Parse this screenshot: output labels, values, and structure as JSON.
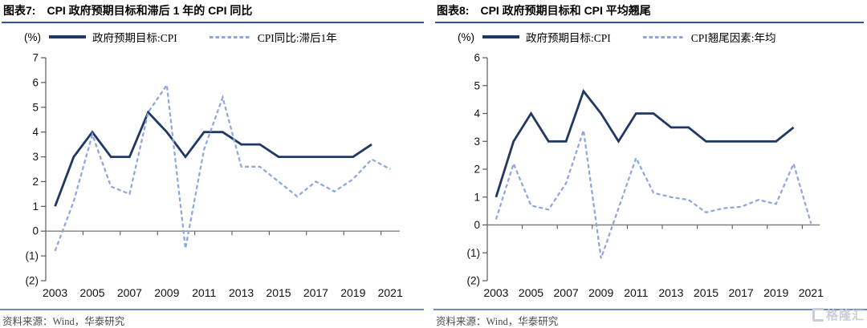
{
  "watermark": {
    "icon": "gelonghui-logo-icon",
    "text": "格隆汇"
  },
  "colors": {
    "solid_line": "#1F3864",
    "dashed_line": "#8AA5E2",
    "title_underline": "#2F5597",
    "footer_rule": "#6C8EBF",
    "axis_line": "#595959",
    "zero_axis_line": "#808080",
    "watermark_gray": "#C9CED6"
  },
  "panels": [
    {
      "title_prefix": "图表7:",
      "title": "CPI 政府预期目标和滞后 1 年的 CPI 同比",
      "unit_label": "(%)",
      "source": "资料来源：Wind，华泰研究",
      "chart_data": {
        "type": "line",
        "x": [
          "2003",
          "2004",
          "2005",
          "2006",
          "2007",
          "2008",
          "2009",
          "2010",
          "2011",
          "2012",
          "2013",
          "2014",
          "2015",
          "2016",
          "2017",
          "2018",
          "2019",
          "2020",
          "2021"
        ],
        "x_tick_labels": [
          "2003",
          "2005",
          "2007",
          "2009",
          "2011",
          "2013",
          "2015",
          "2017",
          "2019",
          "2021"
        ],
        "ylim": [
          -2,
          7
        ],
        "ytick_labels": [
          "7",
          "6",
          "5",
          "4",
          "3",
          "2",
          "1",
          "0",
          "(1)",
          "(2)"
        ],
        "grid": false,
        "legend_position": "top",
        "series": [
          {
            "name": "政府预期目标:CPI",
            "style": "solid",
            "color": "#1F3864",
            "values": [
              1,
              3,
              4,
              3,
              3,
              4.8,
              4,
              3,
              4,
              4,
              3.5,
              3.5,
              3,
              3,
              3,
              3,
              3,
              3.5,
              null
            ]
          },
          {
            "name": "CPI同比:滞后1年",
            "style": "dashed",
            "color": "#8AA5E2",
            "values": [
              -0.8,
              1.2,
              3.9,
              1.8,
              1.5,
              4.8,
              5.9,
              -0.7,
              3.3,
              5.4,
              2.6,
              2.6,
              2,
              1.4,
              2,
              1.6,
              2.1,
              2.9,
              2.5
            ]
          }
        ]
      }
    },
    {
      "title_prefix": "图表8:",
      "title": "CPI 政府预期目标和 CPI 平均翘尾",
      "unit_label": "(%)",
      "source": "资料来源：Wind，华泰研究",
      "chart_data": {
        "type": "line",
        "x": [
          "2003",
          "2004",
          "2005",
          "2006",
          "2007",
          "2008",
          "2009",
          "2010",
          "2011",
          "2012",
          "2013",
          "2014",
          "2015",
          "2016",
          "2017",
          "2018",
          "2019",
          "2020",
          "2021"
        ],
        "x_tick_labels": [
          "2003",
          "2005",
          "2007",
          "2009",
          "2011",
          "2013",
          "2015",
          "2017",
          "2019",
          "2021"
        ],
        "ylim": [
          -2,
          6
        ],
        "ytick_labels": [
          "6",
          "5",
          "4",
          "3",
          "2",
          "1",
          "0",
          "(1)",
          "(2)"
        ],
        "grid": false,
        "legend_position": "top",
        "series": [
          {
            "name": "政府预期目标:CPI",
            "style": "solid",
            "color": "#1F3864",
            "values": [
              1,
              3,
              4,
              3,
              3,
              4.8,
              4,
              3,
              4,
              4,
              3.5,
              3.5,
              3,
              3,
              3,
              3,
              3,
              3.5,
              null
            ]
          },
          {
            "name": "CPI翘尾因素:年均",
            "style": "dashed",
            "color": "#8AA5E2",
            "values": [
              0.2,
              2.2,
              0.7,
              0.55,
              1.5,
              3.4,
              -1.2,
              0.6,
              2.4,
              1.15,
              1,
              0.9,
              0.45,
              0.6,
              0.65,
              0.9,
              0.75,
              2.2,
              0.05
            ]
          }
        ]
      }
    }
  ]
}
